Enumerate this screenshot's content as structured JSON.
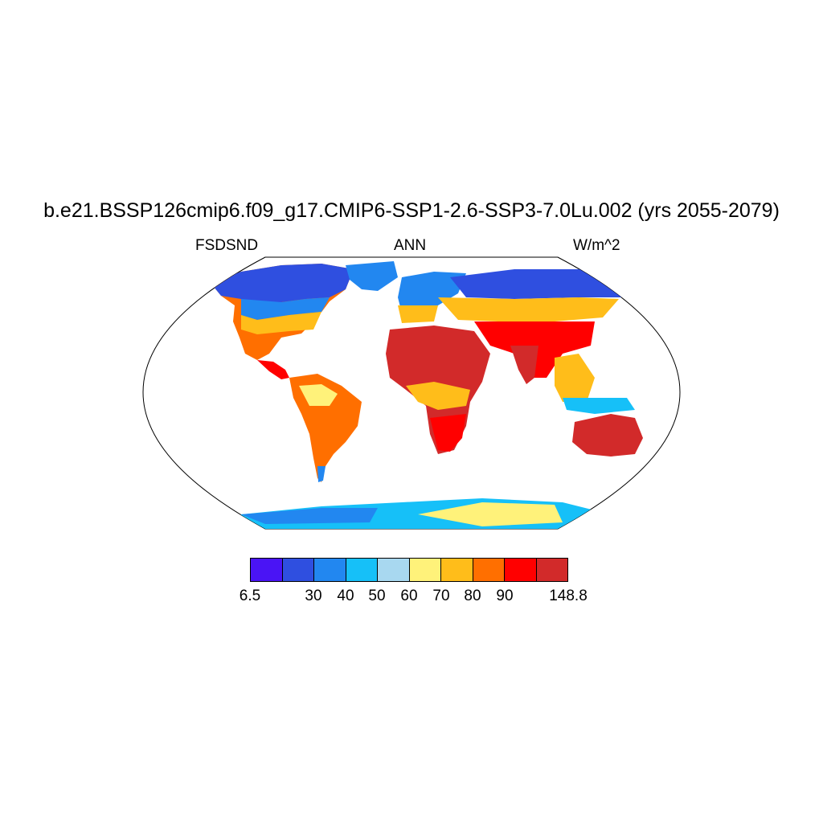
{
  "title": "b.e21.BSSP126cmip6.f09_g17.CMIP6-SSP1-2.6-SSP3-7.0Lu.002 (yrs 2055-2079)",
  "subtitle_left": "FSDSND",
  "subtitle_center": "ANN",
  "subtitle_right": "W/m^2",
  "colorbar": {
    "colors": [
      "#4a14f5",
      "#2f4fe0",
      "#2287f0",
      "#16c0f8",
      "#a8d8f0",
      "#fff27a",
      "#ffbd1a",
      "#ff6f00",
      "#ff0000",
      "#d22a2a"
    ],
    "labels": [
      "6.5",
      "30",
      "40",
      "50",
      "60",
      "70",
      "80",
      "90",
      "148.8"
    ]
  }
}
